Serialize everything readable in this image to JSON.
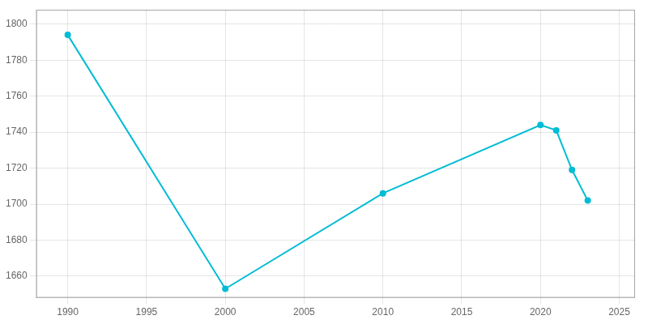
{
  "chart_data": {
    "type": "line",
    "x": [
      1990,
      2000,
      2010,
      2020,
      2021,
      2022,
      2023
    ],
    "values": [
      1794,
      1653,
      1706,
      1744,
      1741,
      1719,
      1702
    ],
    "color": "#00BCD4",
    "marker": "circle",
    "xlim": [
      1988,
      2026
    ],
    "ylim": [
      1648,
      1808
    ],
    "xticks": [
      1990,
      1995,
      2000,
      2005,
      2010,
      2015,
      2020,
      2025
    ],
    "yticks": [
      1660,
      1680,
      1700,
      1720,
      1740,
      1760,
      1780,
      1800
    ],
    "grid": true
  }
}
